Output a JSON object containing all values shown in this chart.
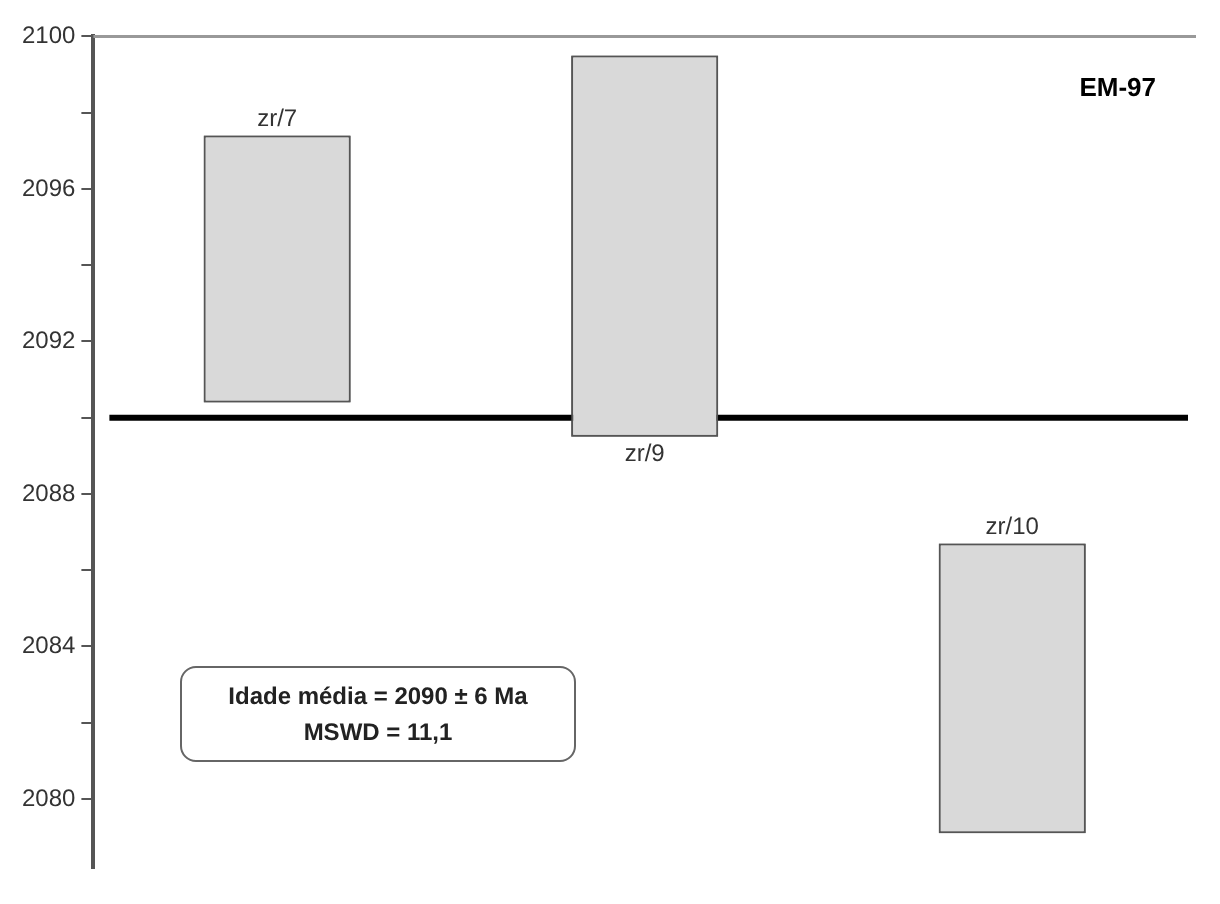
{
  "chart_data": {
    "type": "bar",
    "categories": [
      "zr/7",
      "zr/9",
      "zr/10"
    ],
    "base": [
      2090.4,
      2089.5,
      2079.1
    ],
    "values": [
      7.0,
      10.0,
      7.6
    ],
    "color": "#d9d9d9",
    "ylim": [
      2078.2,
      2100
    ],
    "yticks": [
      {
        "value": 2080,
        "label": "2080"
      },
      {
        "value": 2082,
        "label": null
      },
      {
        "value": 2084,
        "label": "2084"
      },
      {
        "value": 2086,
        "label": null
      },
      {
        "value": 2088,
        "label": "2088"
      },
      {
        "value": 2090,
        "label": null
      },
      {
        "value": 2092,
        "label": "2092"
      },
      {
        "value": 2094,
        "label": null
      },
      {
        "value": 2096,
        "label": "2096"
      },
      {
        "value": 2098,
        "label": null
      },
      {
        "value": 2100,
        "label": "2100"
      }
    ],
    "tick_labels": "y",
    "grid": false,
    "legend": false,
    "ref_lines": [
      {
        "axis": "y",
        "value": 2090,
        "color": "#000000"
      }
    ],
    "annotations": [
      "EM-97",
      "Idade média = 2090 ± 6 Ma",
      "MSWD = 11,1"
    ]
  }
}
